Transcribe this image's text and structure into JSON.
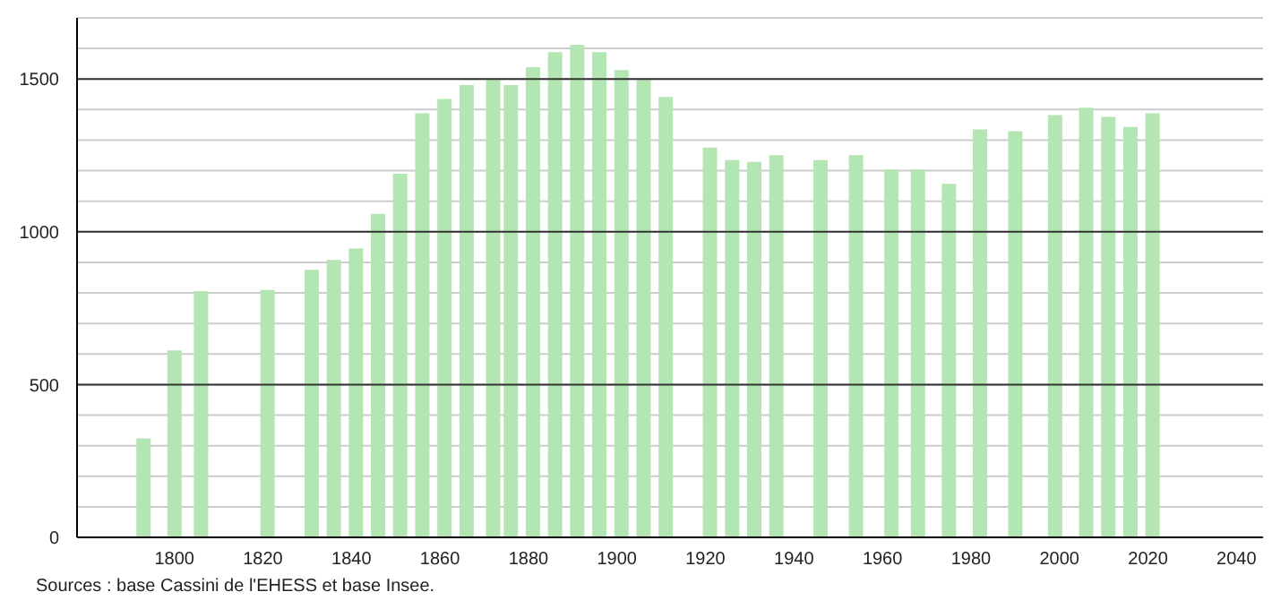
{
  "chart_data": {
    "type": "bar",
    "x": [
      1793,
      1800,
      1806,
      1821,
      1831,
      1836,
      1841,
      1846,
      1851,
      1856,
      1861,
      1866,
      1872,
      1876,
      1881,
      1886,
      1891,
      1896,
      1901,
      1906,
      1911,
      1921,
      1926,
      1931,
      1936,
      1946,
      1954,
      1962,
      1968,
      1975,
      1982,
      1990,
      1999,
      2006,
      2011,
      2016,
      2021
    ],
    "values": [
      324,
      612,
      806,
      810,
      876,
      908,
      945,
      1059,
      1190,
      1388,
      1435,
      1480,
      1500,
      1480,
      1539,
      1588,
      1612,
      1588,
      1529,
      1498,
      1441,
      1276,
      1235,
      1229,
      1251,
      1235,
      1251,
      1204,
      1204,
      1157,
      1335,
      1329,
      1382,
      1406,
      1376,
      1343,
      1388
    ],
    "color": "#b3e6b3",
    "xlim": [
      1778,
      2046
    ],
    "xticks": [
      1800,
      1820,
      1840,
      1860,
      1880,
      1900,
      1920,
      1940,
      1960,
      1980,
      2000,
      2020,
      2040
    ],
    "ylim": [
      0,
      1700
    ],
    "yticks": [
      0,
      {
        "value": 100,
        "label": null
      },
      {
        "value": 200,
        "label": null
      },
      {
        "value": 300,
        "label": null
      },
      {
        "value": 400,
        "label": null
      },
      500,
      {
        "value": 600,
        "label": null
      },
      {
        "value": 700,
        "label": null
      },
      {
        "value": 800,
        "label": null
      },
      {
        "value": 900,
        "label": null
      },
      1000,
      {
        "value": 1100,
        "label": null
      },
      {
        "value": 1200,
        "label": null
      },
      {
        "value": 1300,
        "label": null
      },
      {
        "value": 1400,
        "label": null
      },
      1500,
      {
        "value": 1600,
        "label": null
      },
      {
        "value": 1700,
        "label": null
      }
    ],
    "grid": "y",
    "annotations": [
      "Sources : base Cassini de l'EHESS et base Insee."
    ]
  }
}
